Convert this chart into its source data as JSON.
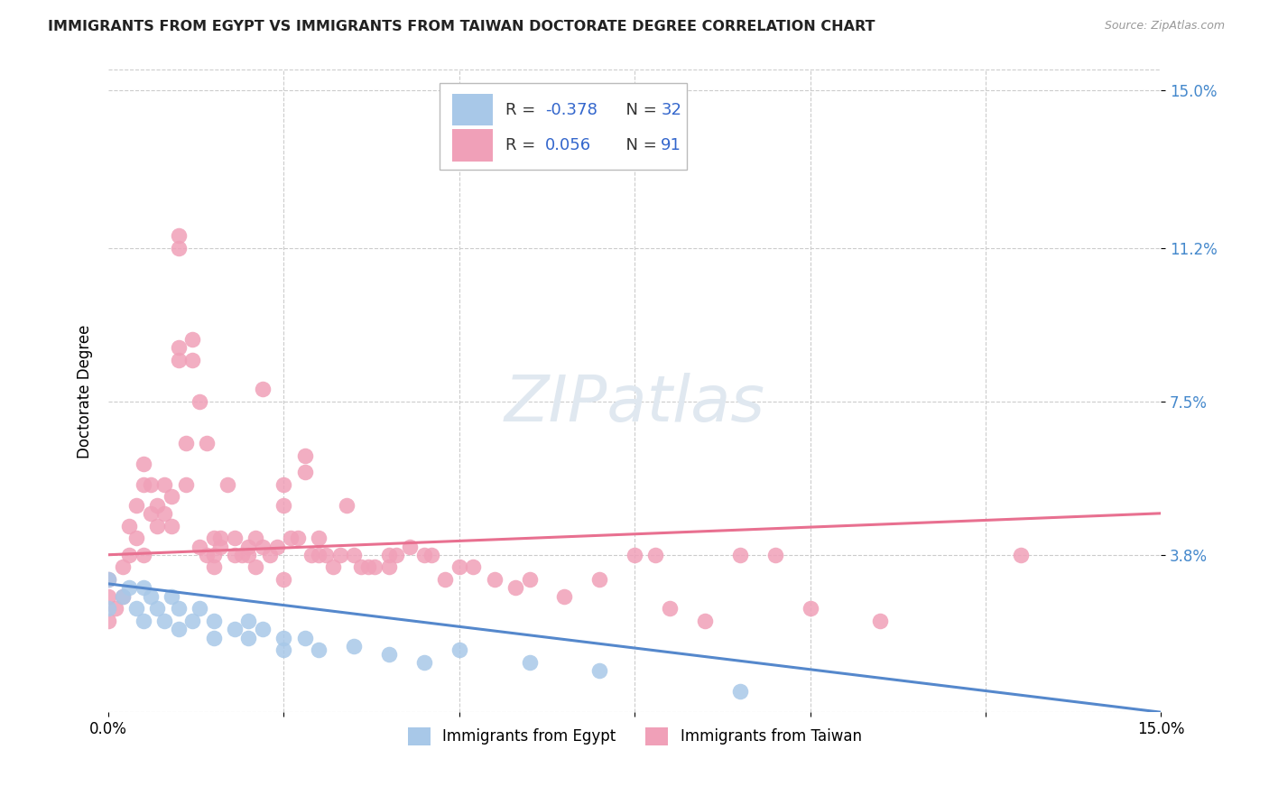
{
  "title": "IMMIGRANTS FROM EGYPT VS IMMIGRANTS FROM TAIWAN DOCTORATE DEGREE CORRELATION CHART",
  "source": "Source: ZipAtlas.com",
  "ylabel": "Doctorate Degree",
  "yticks": [
    "15.0%",
    "11.2%",
    "7.5%",
    "3.8%"
  ],
  "ytick_vals": [
    0.15,
    0.112,
    0.075,
    0.038
  ],
  "xlim": [
    0.0,
    0.15
  ],
  "ylim": [
    0.0,
    0.155
  ],
  "legend_egypt_r": "-0.378",
  "legend_egypt_n": "32",
  "legend_taiwan_r": "0.056",
  "legend_taiwan_n": "91",
  "color_egypt": "#a8c8e8",
  "color_taiwan": "#f0a0b8",
  "color_egypt_line": "#5588cc",
  "color_taiwan_line": "#e87090",
  "background_color": "#ffffff",
  "egypt_x": [
    0.0,
    0.0,
    0.002,
    0.003,
    0.004,
    0.005,
    0.005,
    0.006,
    0.007,
    0.008,
    0.009,
    0.01,
    0.01,
    0.012,
    0.013,
    0.015,
    0.015,
    0.018,
    0.02,
    0.02,
    0.022,
    0.025,
    0.025,
    0.028,
    0.03,
    0.035,
    0.04,
    0.045,
    0.05,
    0.06,
    0.07,
    0.09
  ],
  "egypt_y": [
    0.032,
    0.025,
    0.028,
    0.03,
    0.025,
    0.03,
    0.022,
    0.028,
    0.025,
    0.022,
    0.028,
    0.02,
    0.025,
    0.022,
    0.025,
    0.018,
    0.022,
    0.02,
    0.018,
    0.022,
    0.02,
    0.018,
    0.015,
    0.018,
    0.015,
    0.016,
    0.014,
    0.012,
    0.015,
    0.012,
    0.01,
    0.005
  ],
  "taiwan_x": [
    0.0,
    0.0,
    0.0,
    0.001,
    0.002,
    0.002,
    0.003,
    0.003,
    0.004,
    0.004,
    0.005,
    0.005,
    0.005,
    0.006,
    0.006,
    0.007,
    0.007,
    0.008,
    0.008,
    0.009,
    0.009,
    0.01,
    0.01,
    0.01,
    0.01,
    0.011,
    0.011,
    0.012,
    0.012,
    0.013,
    0.013,
    0.014,
    0.014,
    0.015,
    0.015,
    0.015,
    0.016,
    0.016,
    0.017,
    0.018,
    0.018,
    0.019,
    0.02,
    0.02,
    0.021,
    0.021,
    0.022,
    0.022,
    0.023,
    0.024,
    0.025,
    0.025,
    0.025,
    0.026,
    0.027,
    0.028,
    0.028,
    0.029,
    0.03,
    0.03,
    0.031,
    0.032,
    0.033,
    0.034,
    0.035,
    0.036,
    0.037,
    0.038,
    0.04,
    0.04,
    0.041,
    0.043,
    0.045,
    0.046,
    0.048,
    0.05,
    0.052,
    0.055,
    0.058,
    0.06,
    0.065,
    0.07,
    0.075,
    0.078,
    0.08,
    0.085,
    0.09,
    0.095,
    0.1,
    0.11,
    0.13
  ],
  "taiwan_y": [
    0.028,
    0.032,
    0.022,
    0.025,
    0.035,
    0.028,
    0.045,
    0.038,
    0.05,
    0.042,
    0.06,
    0.055,
    0.038,
    0.055,
    0.048,
    0.05,
    0.045,
    0.055,
    0.048,
    0.052,
    0.045,
    0.085,
    0.088,
    0.115,
    0.112,
    0.065,
    0.055,
    0.09,
    0.085,
    0.075,
    0.04,
    0.065,
    0.038,
    0.042,
    0.038,
    0.035,
    0.04,
    0.042,
    0.055,
    0.042,
    0.038,
    0.038,
    0.04,
    0.038,
    0.042,
    0.035,
    0.04,
    0.078,
    0.038,
    0.04,
    0.055,
    0.05,
    0.032,
    0.042,
    0.042,
    0.058,
    0.062,
    0.038,
    0.042,
    0.038,
    0.038,
    0.035,
    0.038,
    0.05,
    0.038,
    0.035,
    0.035,
    0.035,
    0.038,
    0.035,
    0.038,
    0.04,
    0.038,
    0.038,
    0.032,
    0.035,
    0.035,
    0.032,
    0.03,
    0.032,
    0.028,
    0.032,
    0.038,
    0.038,
    0.025,
    0.022,
    0.038,
    0.038,
    0.025,
    0.022,
    0.038
  ],
  "egypt_trendline_x": [
    0.0,
    0.15
  ],
  "egypt_trendline_y": [
    0.031,
    0.0
  ],
  "taiwan_trendline_x": [
    0.0,
    0.15
  ],
  "taiwan_trendline_y": [
    0.038,
    0.048
  ]
}
